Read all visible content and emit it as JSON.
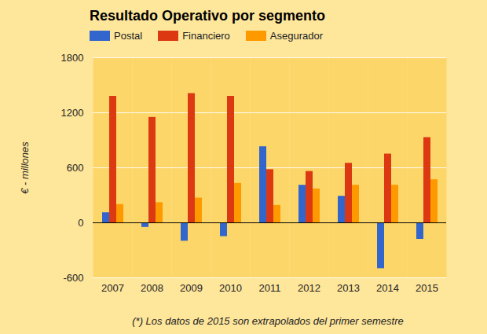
{
  "chart_data": {
    "type": "bar",
    "title": "Resultado Operativo por segmento",
    "ylabel": "€ - millones",
    "caption": "(*) Los datos de 2015 son extrapolados del primer semestre",
    "categories": [
      "2007",
      "2008",
      "2009",
      "2010",
      "2011",
      "2012",
      "2013",
      "2014",
      "2015"
    ],
    "series": [
      {
        "name": "Postal",
        "color": "#3366cc",
        "values": [
          110,
          -50,
          -200,
          -150,
          830,
          410,
          290,
          -500,
          -180
        ]
      },
      {
        "name": "Financiero",
        "color": "#dc3912",
        "values": [
          1380,
          1150,
          1410,
          1380,
          580,
          560,
          650,
          750,
          930
        ]
      },
      {
        "name": "Asegurador",
        "color": "#ff9900",
        "values": [
          200,
          220,
          270,
          430,
          190,
          370,
          410,
          410,
          470
        ]
      }
    ],
    "ylim": [
      -600,
      1800
    ],
    "yticks": [
      -600,
      0,
      600,
      1200,
      1800
    ],
    "grid": true,
    "legend": "top"
  }
}
